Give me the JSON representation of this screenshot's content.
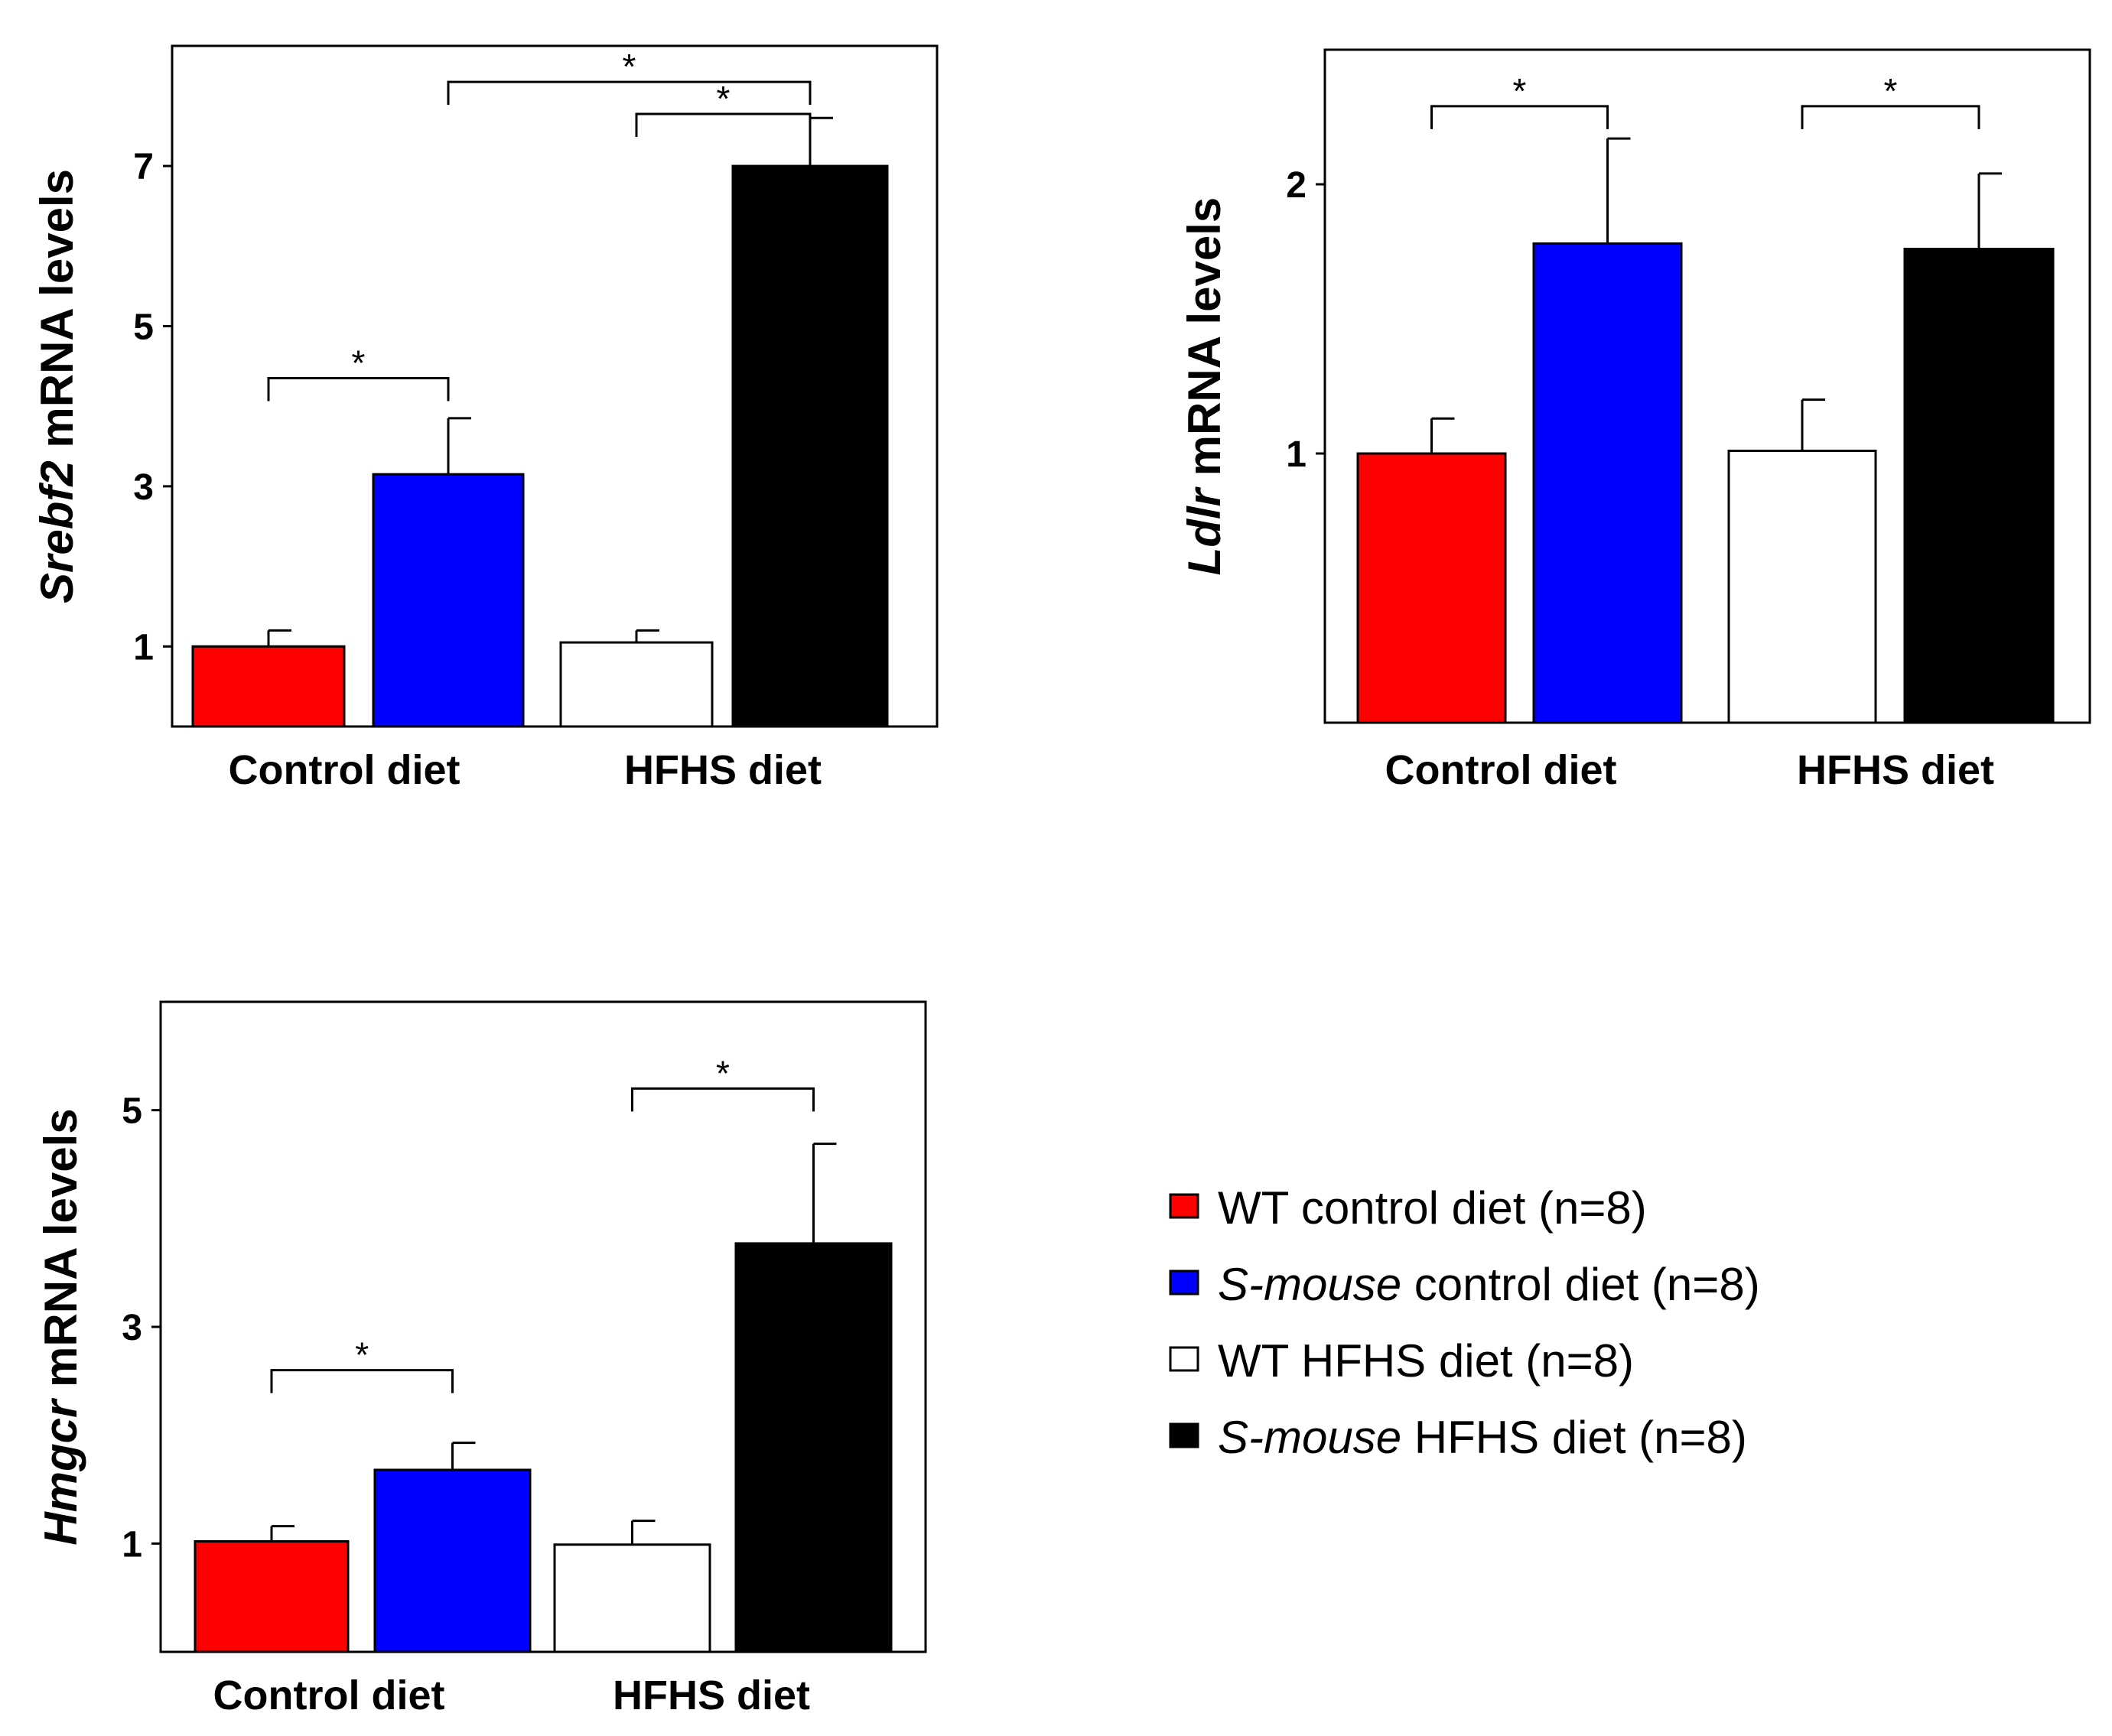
{
  "chart_data": [
    {
      "type": "bar",
      "panel": "top-left",
      "ylabel": {
        "gene": "Srebf2",
        "rest": "mRNA levels"
      },
      "categories": [
        "Control diet",
        "HFHS diet"
      ],
      "ylim": [
        0,
        8.5
      ],
      "yticks": [
        1,
        3,
        5,
        7
      ],
      "bars": [
        {
          "series": "WT control diet (n=8)",
          "group": "Control diet",
          "value": 1.0,
          "error": 0.2,
          "color": "#ff0000"
        },
        {
          "series": "S-mouse control diet (n=8)",
          "group": "Control diet",
          "value": 3.15,
          "error": 0.7,
          "color": "#0000ff"
        },
        {
          "series": "WT HFHS diet (n=8)",
          "group": "HFHS diet",
          "value": 1.05,
          "error": 0.15,
          "color": "#ffffff"
        },
        {
          "series": "S-mouse HFHS diet (n=8)",
          "group": "HFHS diet",
          "value": 7.0,
          "error": 0.6,
          "color": "#000000"
        }
      ],
      "significance": [
        {
          "from": 0,
          "to": 1,
          "label": "*",
          "level": 4.35
        },
        {
          "from": 2,
          "to": 3,
          "label": "*",
          "level": 7.65
        },
        {
          "from": 1,
          "to": 3,
          "label": "*",
          "level": 8.05
        }
      ]
    },
    {
      "type": "bar",
      "panel": "top-right",
      "ylabel": {
        "gene": "Ldlr",
        "rest": "mRNA levels"
      },
      "categories": [
        "Control diet",
        "HFHS diet"
      ],
      "ylim": [
        0,
        2.5
      ],
      "yticks": [
        1,
        2
      ],
      "bars": [
        {
          "series": "WT control diet (n=8)",
          "group": "Control diet",
          "value": 1.0,
          "error": 0.13,
          "color": "#ff0000"
        },
        {
          "series": "S-mouse control diet (n=8)",
          "group": "Control diet",
          "value": 1.78,
          "error": 0.39,
          "color": "#0000ff"
        },
        {
          "series": "WT HFHS diet (n=8)",
          "group": "HFHS diet",
          "value": 1.01,
          "error": 0.19,
          "color": "#ffffff"
        },
        {
          "series": "S-mouse HFHS diet (n=8)",
          "group": "HFHS diet",
          "value": 1.76,
          "error": 0.28,
          "color": "#000000"
        }
      ],
      "significance": [
        {
          "from": 0,
          "to": 1,
          "label": "*",
          "level": 2.29
        },
        {
          "from": 2,
          "to": 3,
          "label": "*",
          "level": 2.29
        }
      ]
    },
    {
      "type": "bar",
      "panel": "bottom-left",
      "ylabel": {
        "gene": "Hmgcr",
        "rest": "mRNA levels"
      },
      "categories": [
        "Control diet",
        "HFHS diet"
      ],
      "ylim": [
        0,
        6
      ],
      "yticks": [
        1,
        3,
        5
      ],
      "bars": [
        {
          "series": "WT control diet (n=8)",
          "group": "Control diet",
          "value": 1.02,
          "error": 0.14,
          "color": "#ff0000"
        },
        {
          "series": "S-mouse control diet (n=8)",
          "group": "Control diet",
          "value": 1.68,
          "error": 0.25,
          "color": "#0000ff"
        },
        {
          "series": "WT HFHS diet (n=8)",
          "group": "HFHS diet",
          "value": 0.99,
          "error": 0.22,
          "color": "#ffffff"
        },
        {
          "series": "S-mouse HFHS diet (n=8)",
          "group": "HFHS diet",
          "value": 3.77,
          "error": 0.92,
          "color": "#000000"
        }
      ],
      "significance": [
        {
          "from": 0,
          "to": 1,
          "label": "*",
          "level": 2.6
        },
        {
          "from": 2,
          "to": 3,
          "label": "*",
          "level": 5.2
        }
      ]
    }
  ],
  "legend": {
    "placement": "bottom-right",
    "items": [
      {
        "italic": "",
        "text": "WT control diet (n=8)",
        "color": "#ff0000"
      },
      {
        "italic": "S-mouse",
        "text": " control diet (n=8)",
        "color": "#0000ff"
      },
      {
        "italic": "",
        "text": "WT HFHS diet (n=8)",
        "color": "#ffffff"
      },
      {
        "italic": "S-mouse",
        "text": " HFHS diet (n=8)",
        "color": "#000000"
      }
    ]
  }
}
